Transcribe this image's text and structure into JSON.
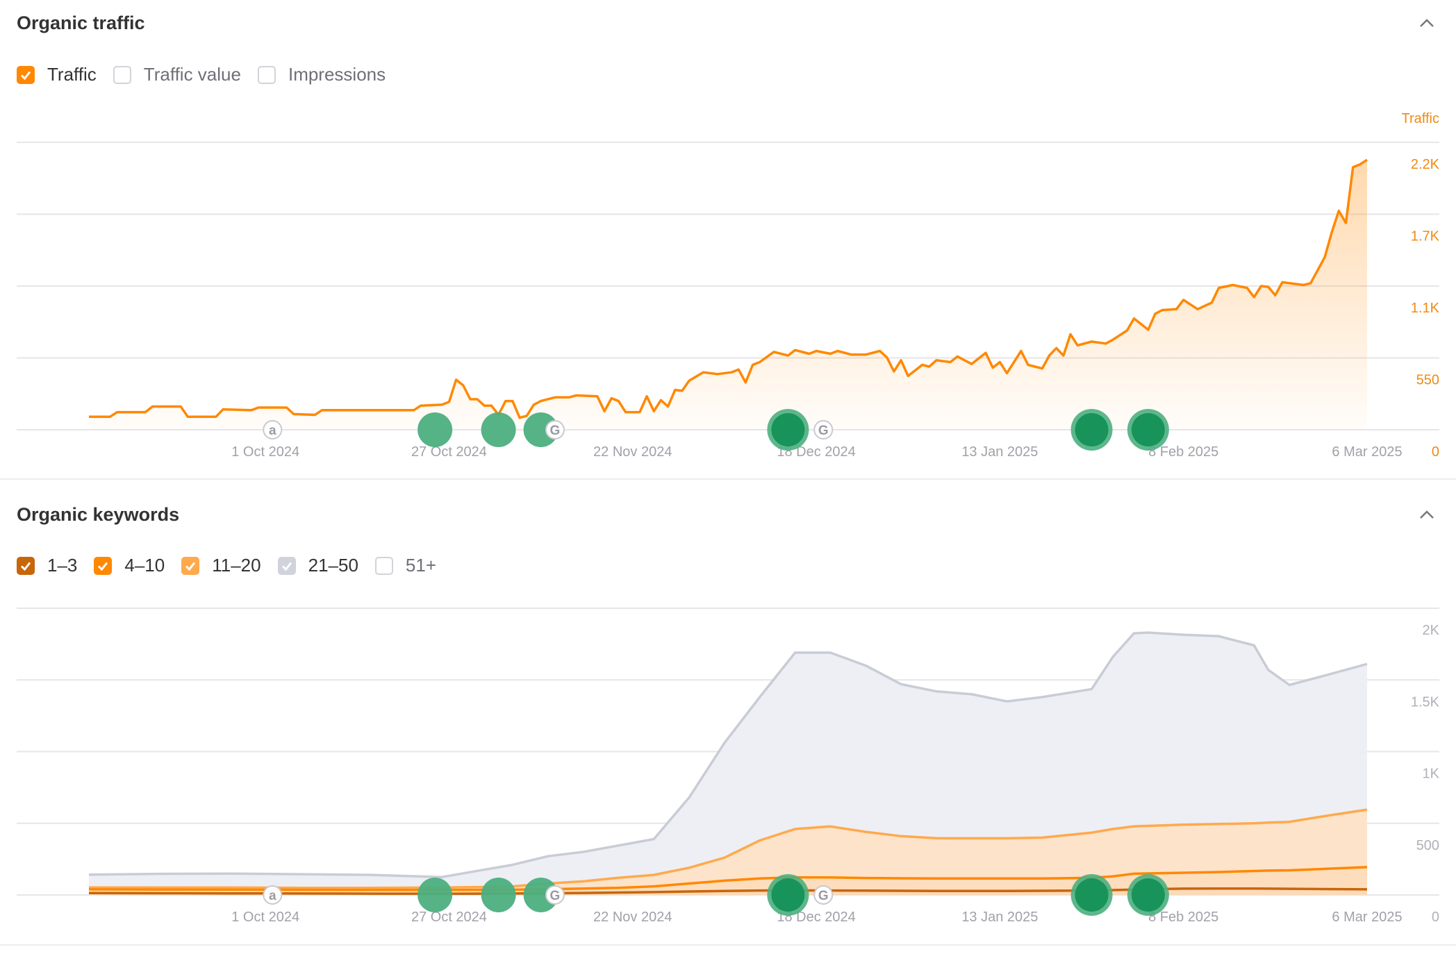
{
  "traffic_section": {
    "title": "Organic traffic",
    "legend": [
      {
        "label": "Traffic",
        "checked": true,
        "color": "#ff8800"
      },
      {
        "label": "Traffic value",
        "checked": false
      },
      {
        "label": "Impressions",
        "checked": false
      }
    ],
    "collapse_icon": "chevron-up-icon"
  },
  "keywords_section": {
    "title": "Organic keywords",
    "legend": [
      {
        "label": "1–3",
        "checked": true,
        "color": "#c8660a"
      },
      {
        "label": "4–10",
        "checked": true,
        "color": "#ff8800"
      },
      {
        "label": "11–20",
        "checked": true,
        "color": "#ffa94d"
      },
      {
        "label": "21–50",
        "checked": true,
        "color": "#d0d3dc"
      },
      {
        "label": "51+",
        "checked": false
      }
    ],
    "collapse_icon": "chevron-up-icon"
  },
  "events": [
    {
      "kind": "annotation",
      "letter": "a",
      "day": 26
    },
    {
      "kind": "update",
      "tone": "light",
      "day": 49
    },
    {
      "kind": "update",
      "tone": "light",
      "day": 58
    },
    {
      "kind": "update",
      "tone": "light",
      "day": 64
    },
    {
      "kind": "google",
      "letter": "G",
      "day": 66
    },
    {
      "kind": "update",
      "tone": "dark",
      "day": 99
    },
    {
      "kind": "google",
      "letter": "G",
      "day": 104
    },
    {
      "kind": "update",
      "tone": "dark",
      "day": 142
    },
    {
      "kind": "update",
      "tone": "dark",
      "day": 150
    }
  ],
  "colors": {
    "update_light": "#4caf7f",
    "update_dark": "#18935a",
    "grid": "#e6e6ea",
    "axis_text": "#a0a0a8",
    "traffic": "#ff8800"
  },
  "chart_data": [
    {
      "type": "area",
      "title": "Organic traffic",
      "ylabel": "Traffic",
      "x_unit": "days since 6 Sep 2024",
      "xlim": [
        0,
        181
      ],
      "ylim": [
        0,
        2200
      ],
      "grid": true,
      "yticks": [
        0,
        550,
        1100,
        1650,
        2200
      ],
      "ytick_labels": [
        "0",
        "550",
        "1.1K",
        "1.7K",
        "2.2K"
      ],
      "xticks": [
        25,
        51,
        77,
        103,
        129,
        155,
        181
      ],
      "xtick_labels": [
        "1 Oct 2024",
        "27 Oct 2024",
        "22 Nov 2024",
        "18 Dec 2024",
        "13 Jan 2025",
        "8 Feb 2025",
        "6 Mar 2025"
      ],
      "series": [
        {
          "name": "Traffic",
          "color": "#ff8800",
          "points": [
            [
              0,
              100
            ],
            [
              3,
              100
            ],
            [
              4,
              135
            ],
            [
              8,
              135
            ],
            [
              9,
              178
            ],
            [
              13,
              178
            ],
            [
              14,
              100
            ],
            [
              18,
              100
            ],
            [
              19,
              156
            ],
            [
              23,
              150
            ],
            [
              24,
              170
            ],
            [
              28,
              170
            ],
            [
              29,
              120
            ],
            [
              32,
              114
            ],
            [
              33,
              150
            ],
            [
              46,
              150
            ],
            [
              47,
              185
            ],
            [
              50,
              192
            ],
            [
              51,
              213
            ],
            [
              52,
              383
            ],
            [
              53,
              340
            ],
            [
              54,
              234
            ],
            [
              55,
              234
            ],
            [
              56,
              185
            ],
            [
              57,
              185
            ],
            [
              58,
              114
            ],
            [
              59,
              220
            ],
            [
              60,
              220
            ],
            [
              61,
              92
            ],
            [
              62,
              107
            ],
            [
              63,
              192
            ],
            [
              64,
              220
            ],
            [
              66,
              248
            ],
            [
              68,
              248
            ],
            [
              69,
              263
            ],
            [
              72,
              256
            ],
            [
              73,
              142
            ],
            [
              74,
              241
            ],
            [
              75,
              220
            ],
            [
              76,
              135
            ],
            [
              78,
              135
            ],
            [
              79,
              256
            ],
            [
              80,
              142
            ],
            [
              81,
              227
            ],
            [
              82,
              178
            ],
            [
              83,
              305
            ],
            [
              84,
              298
            ],
            [
              85,
              376
            ],
            [
              87,
              440
            ],
            [
              89,
              426
            ],
            [
              91,
              440
            ],
            [
              92,
              461
            ],
            [
              93,
              362
            ],
            [
              94,
              497
            ],
            [
              95,
              518
            ],
            [
              97,
              596
            ],
            [
              99,
              568
            ],
            [
              100,
              610
            ],
            [
              102,
              582
            ],
            [
              103,
              603
            ],
            [
              105,
              582
            ],
            [
              106,
              603
            ],
            [
              108,
              575
            ],
            [
              110,
              575
            ],
            [
              112,
              603
            ],
            [
              113,
              554
            ],
            [
              114,
              447
            ],
            [
              115,
              532
            ],
            [
              116,
              412
            ],
            [
              118,
              497
            ],
            [
              119,
              483
            ],
            [
              120,
              532
            ],
            [
              122,
              518
            ],
            [
              123,
              561
            ],
            [
              124,
              532
            ],
            [
              125,
              504
            ],
            [
              127,
              589
            ],
            [
              128,
              475
            ],
            [
              129,
              518
            ],
            [
              130,
              433
            ],
            [
              132,
              603
            ],
            [
              133,
              497
            ],
            [
              135,
              469
            ],
            [
              136,
              568
            ],
            [
              137,
              625
            ],
            [
              138,
              568
            ],
            [
              139,
              731
            ],
            [
              140,
              646
            ],
            [
              142,
              675
            ],
            [
              144,
              660
            ],
            [
              145,
              689
            ],
            [
              147,
              760
            ],
            [
              148,
              852
            ],
            [
              150,
              766
            ],
            [
              151,
              888
            ],
            [
              152,
              916
            ],
            [
              154,
              923
            ],
            [
              155,
              994
            ],
            [
              157,
              923
            ],
            [
              159,
              973
            ],
            [
              160,
              1086
            ],
            [
              162,
              1108
            ],
            [
              164,
              1086
            ],
            [
              165,
              1015
            ],
            [
              166,
              1100
            ],
            [
              167,
              1094
            ],
            [
              168,
              1030
            ],
            [
              169,
              1129
            ],
            [
              172,
              1108
            ],
            [
              173,
              1122
            ],
            [
              175,
              1320
            ],
            [
              176,
              1512
            ],
            [
              177,
              1676
            ],
            [
              178,
              1583
            ],
            [
              179,
              2009
            ],
            [
              180,
              2031
            ],
            [
              181,
              2066
            ]
          ]
        }
      ]
    },
    {
      "type": "area",
      "stacked": true,
      "title": "Organic keywords",
      "x_unit": "days since 6 Sep 2024",
      "xlim": [
        0,
        181
      ],
      "ylim": [
        0,
        2000
      ],
      "grid": true,
      "yticks": [
        0,
        500,
        1000,
        1500,
        2000
      ],
      "ytick_labels": [
        "0",
        "500",
        "1K",
        "1.5K",
        "2K"
      ],
      "xticks": [
        25,
        51,
        77,
        103,
        129,
        155,
        181
      ],
      "xtick_labels": [
        "1 Oct 2024",
        "27 Oct 2024",
        "22 Nov 2024",
        "18 Dec 2024",
        "13 Jan 2025",
        "8 Feb 2025",
        "6 Mar 2025"
      ],
      "x": [
        0,
        10,
        20,
        30,
        40,
        50,
        55,
        60,
        65,
        70,
        75,
        80,
        85,
        90,
        95,
        100,
        105,
        110,
        115,
        120,
        125,
        130,
        135,
        140,
        142,
        145,
        148,
        150,
        155,
        160,
        165,
        167,
        170,
        175,
        181
      ],
      "series": [
        {
          "name": "1–3",
          "color": "#c8660a",
          "fill": "#fbd9b8",
          "values": [
            13,
            12,
            11,
            10,
            9,
            8,
            9,
            10,
            12,
            14,
            17,
            20,
            24,
            28,
            31,
            32,
            31,
            30,
            29,
            28,
            28,
            28,
            29,
            30,
            31,
            34,
            38,
            40,
            44,
            45,
            45,
            44,
            43,
            41,
            39
          ]
        },
        {
          "name": "4–10",
          "color": "#ff8800",
          "fill": "#fddcbc",
          "values": [
            26,
            26,
            26,
            26,
            26,
            27,
            27,
            27,
            28,
            31,
            33,
            40,
            56,
            72,
            84,
            91,
            91,
            88,
            87,
            87,
            87,
            87,
            86,
            88,
            89,
            96,
            110,
            110,
            111,
            115,
            122,
            126,
            129,
            141,
            155
          ]
        },
        {
          "name": "11–20",
          "color": "#ffa94d",
          "fill": "#fee2c6",
          "values": [
            13,
            14,
            15,
            14,
            15,
            17,
            19,
            23,
            40,
            50,
            70,
            80,
            110,
            160,
            265,
            337,
            356,
            322,
            294,
            281,
            280,
            280,
            285,
            307,
            315,
            330,
            331,
            332,
            335,
            335,
            333,
            335,
            338,
            368,
            401
          ]
        },
        {
          "name": "21–50",
          "color": "#c9ccd5",
          "fill": "#eceef4",
          "values": [
            90,
            95,
            97,
            95,
            90,
            73,
            113,
            150,
            190,
            205,
            225,
            250,
            490,
            800,
            1000,
            1230,
            1212,
            1160,
            1060,
            1024,
            1005,
            955,
            980,
            995,
            1001,
            1200,
            1346,
            1348,
            1325,
            1310,
            1241,
            1065,
            955,
            980,
            1016
          ]
        }
      ]
    }
  ]
}
